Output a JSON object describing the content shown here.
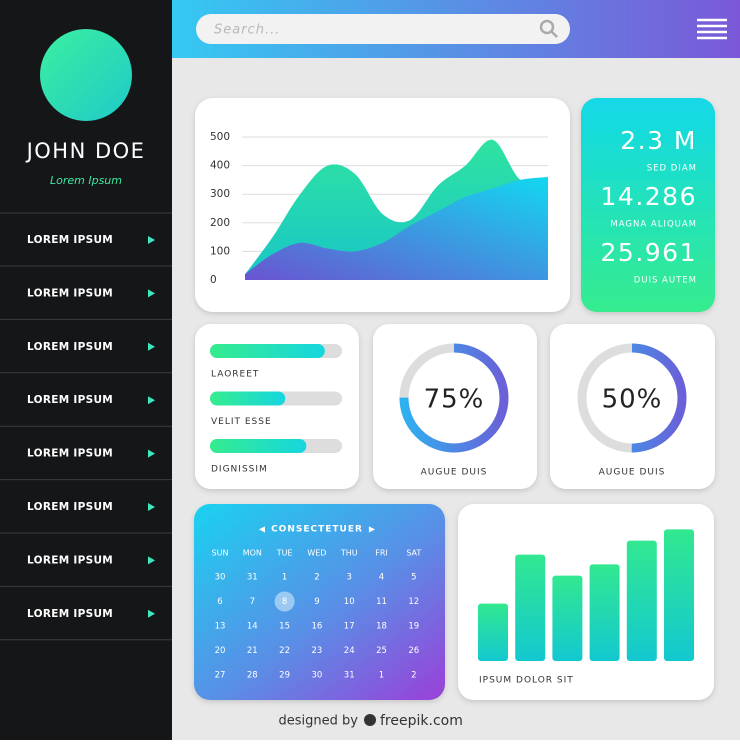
{
  "profile": {
    "name": "JOHN DOE",
    "subtitle": "Lorem Ipsum"
  },
  "menu": [
    "LOREM IPSUM",
    "LOREM IPSUM",
    "LOREM IPSUM",
    "LOREM IPSUM",
    "LOREM IPSUM",
    "LOREM IPSUM",
    "LOREM IPSUM",
    "LOREM IPSUM"
  ],
  "search": {
    "placeholder": "Search..."
  },
  "area_chart": {
    "type": "area",
    "ylim": [
      0,
      500
    ],
    "yticks": [
      0,
      100,
      200,
      300,
      400,
      500
    ],
    "grid": true,
    "series": [
      {
        "color": "#2fe3a0",
        "values": [
          20,
          150,
          300,
          400,
          370,
          230,
          210,
          330,
          400,
          490,
          350,
          360
        ]
      },
      {
        "color": "#4a7be0",
        "values": [
          20,
          90,
          130,
          110,
          100,
          130,
          190,
          240,
          290,
          320,
          350,
          360
        ]
      }
    ]
  },
  "stats": [
    {
      "value": "2.3 M",
      "label": "SED DIAM"
    },
    {
      "value": "14.286",
      "label": "MAGNA ALIQUAM"
    },
    {
      "value": "25.961",
      "label": "DUIS AUTEM"
    }
  ],
  "progress": {
    "type": "bar",
    "xlim": [
      0,
      100
    ],
    "categories": [
      "LAOREET",
      "VELIT ESSE",
      "DIGNISSIM"
    ],
    "values": [
      87,
      57,
      73
    ]
  },
  "donuts": [
    {
      "type": "donut",
      "value": 75,
      "value_label": "75%",
      "label": "AUGUE DUIS"
    },
    {
      "type": "donut",
      "value": 50,
      "value_label": "50%",
      "label": "AUGUE DUIS"
    }
  ],
  "calendar": {
    "month": "CONSECTETUER",
    "weekdays": [
      "SUN",
      "MON",
      "TUE",
      "WED",
      "THU",
      "FRI",
      "SAT"
    ],
    "rows": [
      [
        30,
        31,
        1,
        2,
        3,
        4,
        5
      ],
      [
        6,
        7,
        8,
        9,
        10,
        11,
        12
      ],
      [
        13,
        14,
        15,
        16,
        17,
        18,
        19
      ],
      [
        20,
        21,
        22,
        23,
        24,
        25,
        26
      ],
      [
        27,
        28,
        29,
        30,
        31,
        1,
        2
      ]
    ],
    "selected_day": 8
  },
  "bar_chart": {
    "type": "bar",
    "title": "IPSUM DOLOR SIT",
    "ylim": [
      0,
      100
    ],
    "values": [
      41,
      76,
      61,
      69,
      86,
      94
    ]
  },
  "footer": {
    "text": "designed by",
    "brand": "freepik.com"
  }
}
